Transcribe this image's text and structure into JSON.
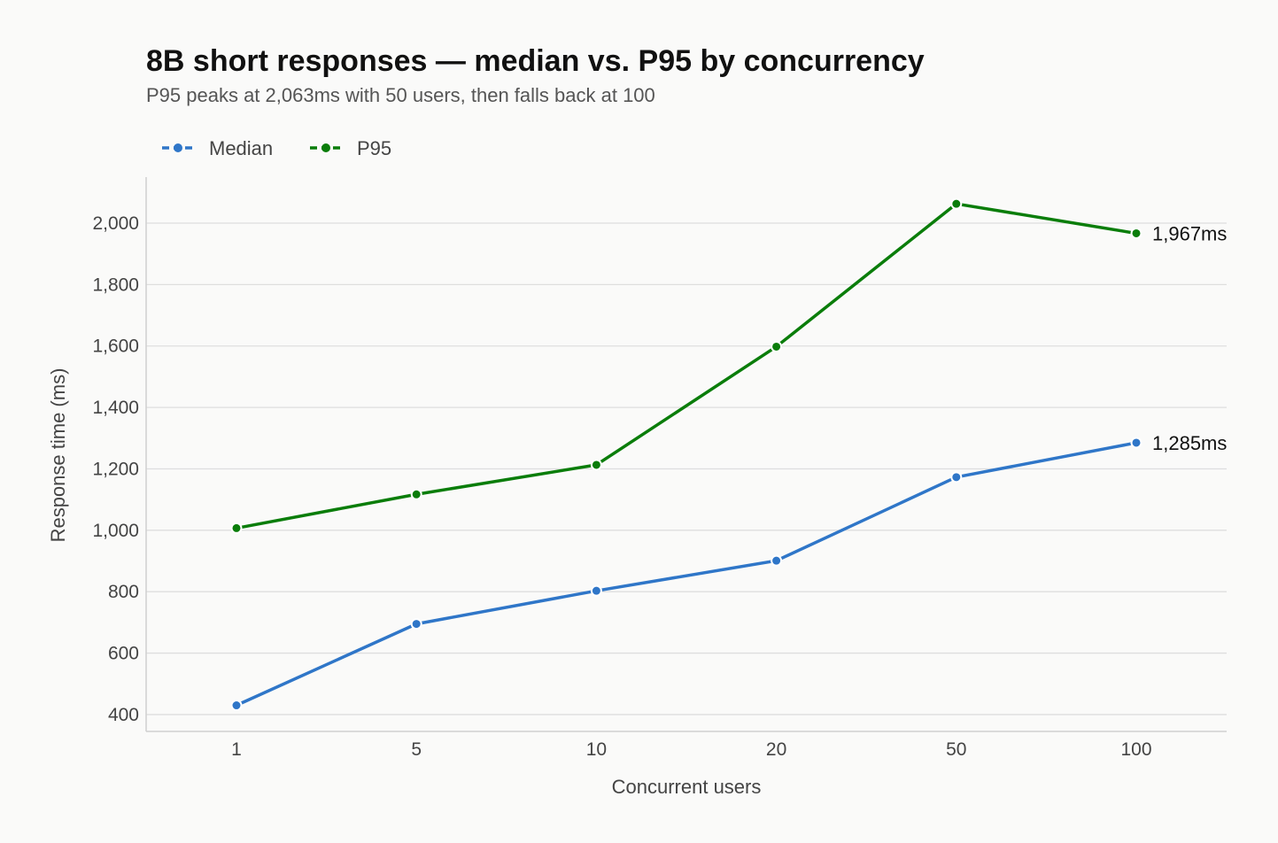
{
  "chart_data": {
    "type": "line",
    "title": "8B short responses — median vs. P95 by concurrency",
    "subtitle": "P95 peaks at 2,063ms with 50 users, then falls back at 100",
    "xlabel": "Concurrent users",
    "ylabel": "Response time (ms)",
    "categories": [
      "1",
      "5",
      "10",
      "20",
      "50",
      "100"
    ],
    "ylim": [
      345,
      2150
    ],
    "yticks": [
      400,
      600,
      800,
      1000,
      1200,
      1400,
      1600,
      1800,
      2000
    ],
    "ytick_labels": [
      "400",
      "600",
      "800",
      "1,000",
      "1,200",
      "1,400",
      "1,600",
      "1,800",
      "2,000"
    ],
    "grid": true,
    "legend_position": "top-left",
    "series": [
      {
        "name": "Median",
        "color": "#2f76c8",
        "values": [
          430,
          695,
          803,
          901,
          1173,
          1285
        ],
        "end_label": "1,285ms"
      },
      {
        "name": "P95",
        "color": "#0a7d0a",
        "values": [
          1007,
          1117,
          1213,
          1598,
          2063,
          1967
        ],
        "end_label": "1,967ms"
      }
    ]
  }
}
